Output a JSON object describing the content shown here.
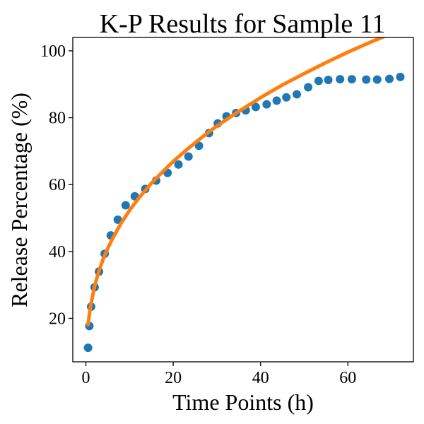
{
  "chart_data": {
    "type": "scatter",
    "title": "K-P Results for Sample 11",
    "xlabel": "Time Points (h)",
    "ylabel": "Release Percentage (%)",
    "xlim": [
      -3,
      75
    ],
    "ylim": [
      7,
      104
    ],
    "xticks": [
      0,
      20,
      40,
      60
    ],
    "yticks": [
      20,
      40,
      60,
      80,
      100
    ],
    "grid": false,
    "legend": "none",
    "series": [
      {
        "kind": "scatter",
        "color": "#1f77b4",
        "x": [
          0.5,
          0.8,
          1.2,
          2.0,
          3.0,
          4.3,
          5.7,
          7.3,
          9.1,
          11.2,
          13.6,
          16.1,
          18.7,
          21.2,
          23.5,
          25.9,
          28.2,
          30.2,
          32.2,
          34.4,
          36.6,
          38.9,
          41.4,
          43.7,
          45.9,
          48.3,
          50.9,
          53.3,
          55.5,
          58.2,
          60.9,
          64.2,
          66.7,
          69.5,
          72.0
        ],
        "y": [
          11.2,
          17.7,
          23.5,
          29.3,
          34.0,
          39.3,
          44.8,
          49.5,
          53.8,
          56.5,
          58.7,
          61.2,
          63.5,
          66.0,
          68.4,
          71.6,
          75.4,
          78.3,
          80.4,
          81.4,
          82.2,
          83.2,
          84.0,
          85.1,
          86.1,
          87.0,
          89.1,
          91.0,
          91.3,
          91.5,
          91.5,
          91.4,
          91.4,
          91.6,
          92.2
        ]
      },
      {
        "kind": "line",
        "color": "#ff7f0e",
        "x": [
          0.5,
          1,
          2,
          3,
          4,
          5,
          6,
          8,
          10,
          12,
          15,
          18,
          20,
          22,
          25,
          28,
          30,
          35,
          40,
          45,
          50,
          55,
          60,
          65,
          70,
          72
        ],
        "y": [
          18.1,
          23.2,
          29.7,
          34.2,
          37.9,
          40.9,
          43.6,
          48.3,
          52.3,
          55.8,
          60.4,
          64.4,
          66.9,
          69.2,
          72.5,
          75.6,
          77.5,
          81.9,
          86.0,
          89.8,
          93.2,
          96.5,
          99.6,
          102.5,
          105.2,
          106.3
        ]
      }
    ]
  }
}
